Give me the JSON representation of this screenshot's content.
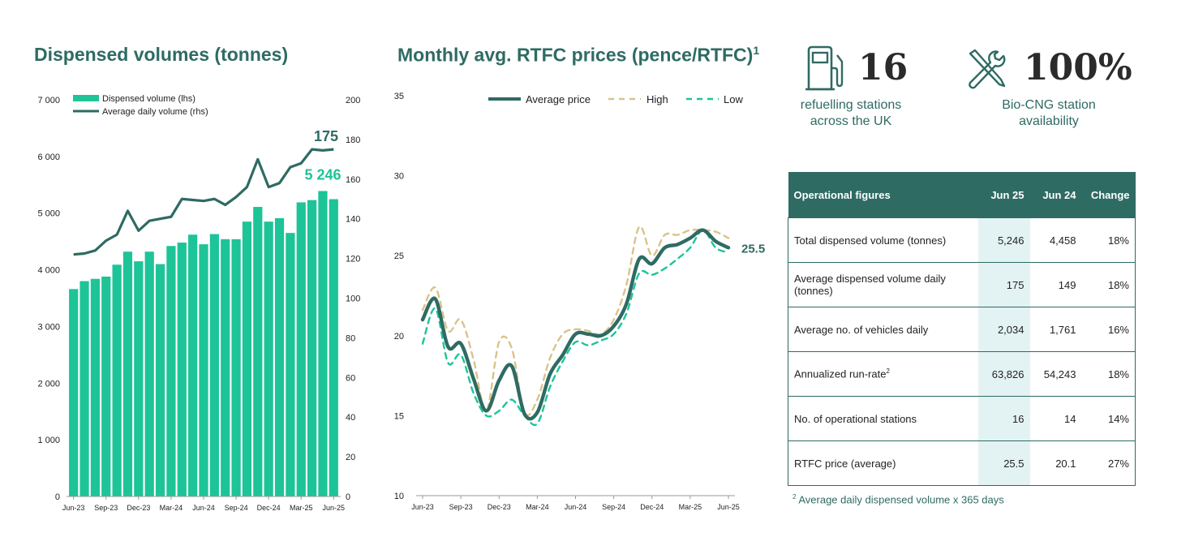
{
  "left_chart": {
    "title": "Dispensed volumes (tonnes)"
  },
  "middle_chart": {
    "title": "Monthly avg. RTFC prices (pence/RTFC)",
    "title_sup": "1"
  },
  "kpis": [
    {
      "value": "16",
      "caption_line1": "refuelling stations",
      "caption_line2": "across the UK",
      "icon": "fuel-pump-icon"
    },
    {
      "value": "100%",
      "caption_line1": "Bio-CNG station",
      "caption_line2": "availability",
      "icon": "tools-icon"
    }
  ],
  "table": {
    "headers": [
      "Operational figures",
      "Jun 25",
      "Jun 24",
      "Change"
    ],
    "rows": [
      {
        "label": "Total dispensed volume (tonnes)",
        "sup": "",
        "jun25": "5,246",
        "jun24": "4,458",
        "change": "18%"
      },
      {
        "label": "Average dispensed volume daily (tonnes)",
        "sup": "",
        "jun25": "175",
        "jun24": "149",
        "change": "18%"
      },
      {
        "label": "Average no. of vehicles daily",
        "sup": "",
        "jun25": "2,034",
        "jun24": "1,761",
        "change": "16%"
      },
      {
        "label": "Annualized run-rate",
        "sup": "2",
        "jun25": "63,826",
        "jun24": "54,243",
        "change": "18%"
      },
      {
        "label": "No. of operational stations",
        "sup": "",
        "jun25": "16",
        "jun24": "14",
        "change": "14%"
      },
      {
        "label": "RTFC price (average)",
        "sup": "",
        "jun25": "25.5",
        "jun24": "20.1",
        "change": "27%"
      }
    ]
  },
  "footnote": {
    "sup": "2",
    "text": " Average daily dispensed volume x 365 days"
  },
  "colors": {
    "teal_dark": "#2e6b63",
    "green": "#1dc498",
    "gold": "#d9c38a",
    "highlight": "#e3f3f4"
  },
  "chart_data": [
    {
      "type": "bar",
      "title": "Dispensed volumes (tonnes)",
      "categories": [
        "Jun-23",
        "Jul-23",
        "Aug-23",
        "Sep-23",
        "Oct-23",
        "Nov-23",
        "Dec-23",
        "Jan-24",
        "Feb-24",
        "Mar-24",
        "Apr-24",
        "May-24",
        "Jun-24",
        "Jul-24",
        "Aug-24",
        "Sep-24",
        "Oct-24",
        "Nov-24",
        "Dec-24",
        "Jan-25",
        "Feb-25",
        "Mar-25",
        "Apr-25",
        "May-25",
        "Jun-25"
      ],
      "x_tick_labels": [
        "Jun-23",
        "Sep-23",
        "Dec-23",
        "Mar-24",
        "Jun-24",
        "Sep-24",
        "Dec-24",
        "Mar-25",
        "Jun-25"
      ],
      "series": [
        {
          "name": "Dispensed volume (lhs)",
          "type": "bar",
          "axis": "left",
          "values": [
            3660,
            3800,
            3840,
            3880,
            4090,
            4320,
            4150,
            4320,
            4100,
            4420,
            4480,
            4620,
            4450,
            4630,
            4540,
            4540,
            4850,
            5110,
            4850,
            4910,
            4650,
            5190,
            5230,
            5390,
            5246
          ]
        },
        {
          "name": "Average daily volume (rhs)",
          "type": "line",
          "axis": "right",
          "values": [
            122,
            122.5,
            124,
            129,
            132,
            144,
            134,
            139,
            140,
            141,
            150,
            149.5,
            149,
            150,
            147,
            151,
            156,
            170,
            156,
            158,
            166,
            168,
            175,
            174.5,
            175
          ]
        }
      ],
      "y_left": {
        "lim": [
          0,
          7000
        ],
        "ticks": [
          "0",
          "1 000",
          "2 000",
          "3 000",
          "4 000",
          "5 000",
          "6 000",
          "7 000"
        ]
      },
      "y_right": {
        "lim": [
          0,
          200
        ],
        "ticks": [
          "0",
          "20",
          "40",
          "60",
          "80",
          "100",
          "120",
          "140",
          "160",
          "180",
          "200"
        ]
      },
      "annotations": {
        "bar_last": "5 246",
        "line_last": "175"
      },
      "legend": "top-left"
    },
    {
      "type": "line",
      "title": "Monthly avg. RTFC prices (pence/RTFC)",
      "categories": [
        "Jun-23",
        "Jul-23",
        "Aug-23",
        "Sep-23",
        "Oct-23",
        "Nov-23",
        "Dec-23",
        "Jan-24",
        "Feb-24",
        "Mar-24",
        "Apr-24",
        "May-24",
        "Jun-24",
        "Jul-24",
        "Aug-24",
        "Sep-24",
        "Oct-24",
        "Nov-24",
        "Dec-24",
        "Jan-25",
        "Feb-25",
        "Mar-25",
        "Apr-25",
        "May-25",
        "Jun-25"
      ],
      "x_tick_labels": [
        "Jun-23",
        "Sep-23",
        "Dec-23",
        "Mar-24",
        "Jun-24",
        "Sep-24",
        "Dec-24",
        "Mar-25",
        "Jun-25"
      ],
      "series": [
        {
          "name": "Average price",
          "style": "solid",
          "values": [
            21,
            22.3,
            19.3,
            19.5,
            17.3,
            15.3,
            17.2,
            18.1,
            15.1,
            15.2,
            17.6,
            18.8,
            20.1,
            20.1,
            20,
            20.6,
            22,
            24.8,
            24.5,
            25.5,
            25.7,
            26.1,
            26.6,
            25.9,
            25.5
          ]
        },
        {
          "name": "High",
          "style": "dashed",
          "values": [
            21.6,
            23,
            20.3,
            21,
            18.5,
            15.3,
            19.6,
            19.2,
            15.2,
            16,
            18.6,
            20.1,
            20.4,
            20.3,
            20.1,
            21,
            23.2,
            26.8,
            25,
            26.3,
            26.3,
            26.6,
            26.6,
            26.5,
            26.1
          ]
        },
        {
          "name": "Low",
          "style": "dashed",
          "values": [
            19.5,
            21.7,
            18.3,
            18.8,
            16.4,
            15,
            15.3,
            16,
            15,
            14.5,
            16.8,
            18.4,
            19.6,
            19.4,
            19.7,
            20.1,
            21.4,
            23.9,
            23.8,
            24.2,
            24.8,
            25.5,
            26.6,
            25.5,
            25.2
          ]
        }
      ],
      "ylim": [
        10,
        35
      ],
      "y_ticks": [
        "10",
        "15",
        "20",
        "25",
        "30",
        "35"
      ],
      "annotations": {
        "last_value": "25.5"
      },
      "legend": "top"
    }
  ]
}
